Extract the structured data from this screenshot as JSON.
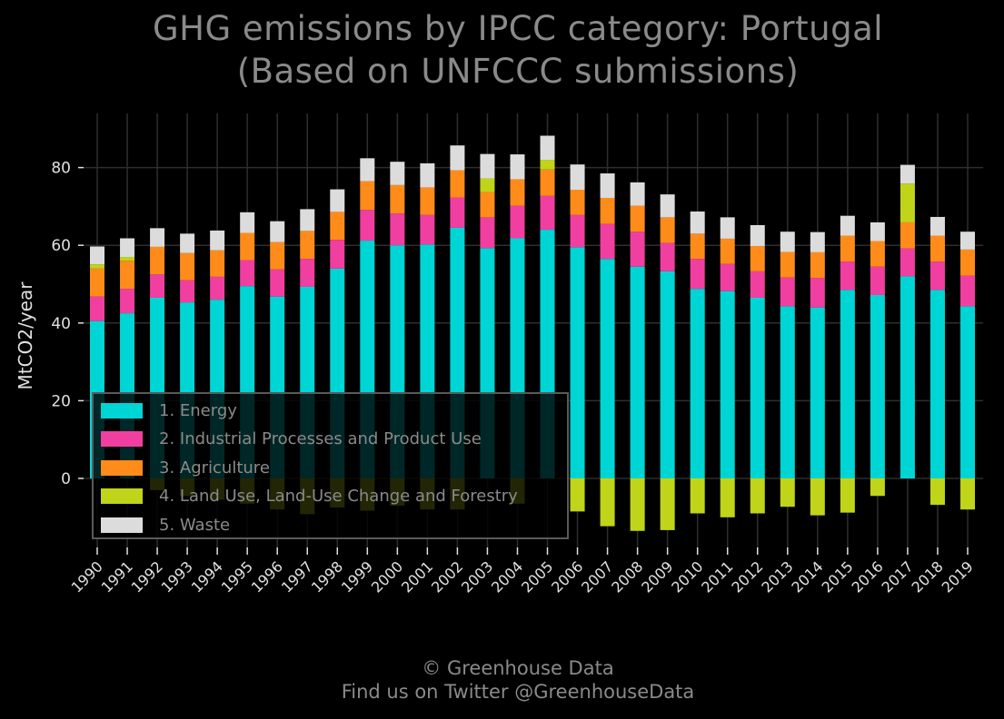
{
  "title": {
    "line1": "GHG emissions by IPCC category: Portugal",
    "line2": "(Based on UNFCCC submissions)"
  },
  "footer": {
    "line1": "© Greenhouse Data",
    "line2": "Find us on Twitter @GreenhouseData"
  },
  "colors": {
    "background": "#000000",
    "grid": "#2e2e2e",
    "text": "#8a8a8a",
    "tick_text": "#e0e0e0"
  },
  "chart_data": {
    "type": "bar",
    "stacked": true,
    "title": "GHG emissions by IPCC category: Portugal\n(Based on UNFCCC submissions)",
    "xlabel": "",
    "ylabel": "MtCO2/year",
    "ylim": [
      -18,
      93
    ],
    "yticks": [
      0,
      20,
      40,
      60,
      80
    ],
    "grid": true,
    "legend_position": "lower-left",
    "categories": [
      "1990",
      "1991",
      "1992",
      "1993",
      "1994",
      "1995",
      "1996",
      "1997",
      "1998",
      "1999",
      "2000",
      "2001",
      "2002",
      "2003",
      "2004",
      "2005",
      "2006",
      "2007",
      "2008",
      "2009",
      "2010",
      "2011",
      "2012",
      "2013",
      "2014",
      "2015",
      "2016",
      "2017",
      "2018",
      "2019"
    ],
    "series": [
      {
        "name": "1. Energy",
        "color": "#00d5d5",
        "values": [
          40.5,
          42.5,
          46.5,
          45.3,
          46.0,
          49.5,
          46.8,
          49.3,
          54.0,
          61.2,
          60.0,
          60.2,
          64.5,
          59.3,
          61.8,
          64.0,
          59.5,
          56.5,
          54.5,
          53.3,
          48.8,
          48.2,
          46.5,
          44.3,
          44.0,
          48.5,
          47.2,
          52.0,
          48.5,
          44.3
        ]
      },
      {
        "name": "2. Industrial Processes and Product Use",
        "color": "#f03fa0",
        "values": [
          6.3,
          6.3,
          6.0,
          5.7,
          5.9,
          6.7,
          7.0,
          7.2,
          7.4,
          7.9,
          8.2,
          7.6,
          7.8,
          7.9,
          8.4,
          8.7,
          8.3,
          9.0,
          9.0,
          7.3,
          7.7,
          7.0,
          6.8,
          7.4,
          7.6,
          7.3,
          7.3,
          7.2,
          7.3,
          7.9
        ]
      },
      {
        "name": "3. Agriculture",
        "color": "#ff8c1a",
        "values": [
          7.2,
          7.2,
          7.1,
          7.0,
          6.8,
          7.0,
          7.0,
          7.2,
          7.2,
          7.4,
          7.3,
          7.1,
          7.0,
          6.5,
          6.8,
          6.8,
          6.5,
          6.7,
          6.7,
          6.6,
          6.5,
          6.5,
          6.5,
          6.6,
          6.6,
          6.7,
          6.6,
          6.7,
          6.7,
          6.7
        ]
      },
      {
        "name": "4. Land Use, Land-Use Change and Forestry",
        "color": "#c0d41a",
        "values": [
          1.1,
          1.0,
          -3.0,
          -4.5,
          -5.5,
          -6.5,
          -8.0,
          -9.2,
          -7.5,
          -8.3,
          -7.0,
          -8.0,
          -8.0,
          3.5,
          -6.5,
          2.5,
          -8.5,
          -12.3,
          -13.5,
          -13.3,
          -9.0,
          -10.0,
          -9.0,
          -7.3,
          -9.5,
          -8.8,
          -4.5,
          10.0,
          -6.8,
          -8.0
        ]
      },
      {
        "name": "5. Waste",
        "color": "#dcdcdc",
        "values": [
          4.6,
          4.8,
          4.8,
          5.0,
          5.1,
          5.3,
          5.4,
          5.6,
          5.8,
          5.9,
          6.0,
          6.2,
          6.4,
          6.3,
          6.4,
          6.2,
          6.5,
          6.3,
          6.0,
          5.9,
          5.7,
          5.5,
          5.4,
          5.2,
          5.2,
          5.1,
          4.8,
          4.8,
          4.8,
          4.6
        ]
      }
    ]
  }
}
